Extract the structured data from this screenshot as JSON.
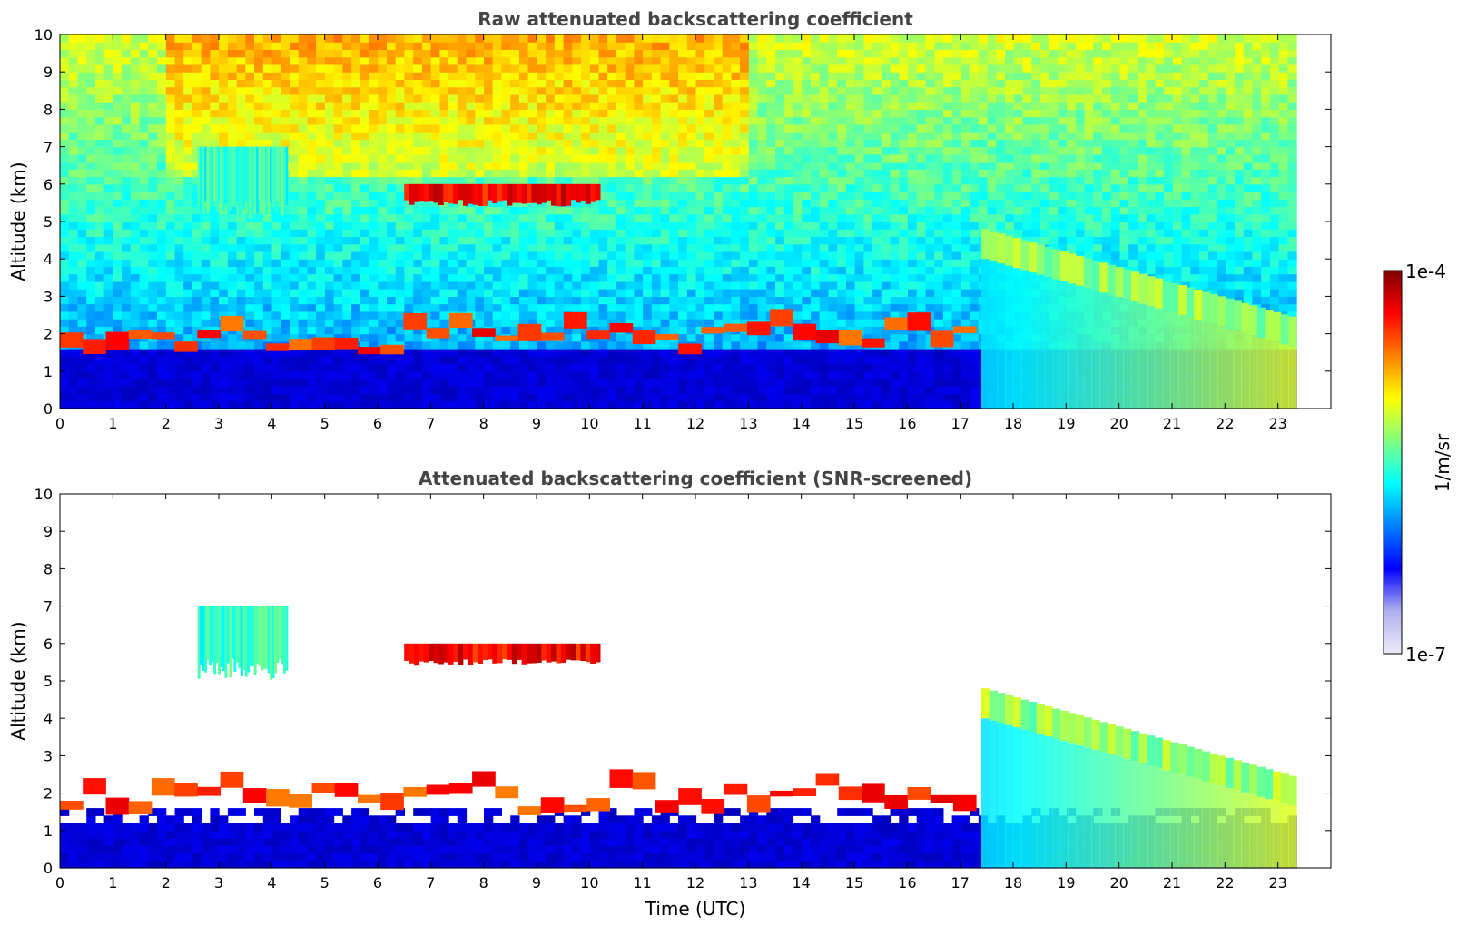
{
  "chart_data": [
    {
      "type": "heatmap",
      "title": "Raw attenuated backscattering coefficient",
      "xlabel": "",
      "ylabel": "Altitude (km)",
      "xlim": [
        0,
        24
      ],
      "ylim": [
        0,
        10
      ],
      "x_ticks": [
        0,
        1,
        2,
        3,
        4,
        5,
        6,
        7,
        8,
        9,
        10,
        11,
        12,
        13,
        14,
        15,
        16,
        17,
        18,
        19,
        20,
        21,
        22,
        23
      ],
      "y_ticks": [
        0,
        1,
        2,
        3,
        4,
        5,
        6,
        7,
        8,
        9,
        10
      ],
      "data_time_range": [
        0,
        23.35
      ],
      "screened": false,
      "features": [
        {
          "name": "boundary layer",
          "t_start": 0,
          "t_end": 23.35,
          "alt_top": 1.5,
          "level": 0.08
        },
        {
          "name": "cirrus",
          "t_start": 2.6,
          "t_end": 4.3,
          "alt_bottom": 5.0,
          "alt_top": 7.0,
          "level": 0.5
        },
        {
          "name": "cloud layer",
          "t_start": 6.5,
          "t_end": 10.2,
          "alt_bottom": 5.4,
          "alt_top": 6.0,
          "level": 0.95
        },
        {
          "name": "low cloud",
          "t_start": 0,
          "t_end": 17.3,
          "alt_bottom": 1.2,
          "alt_top": 2.8,
          "level": 0.9
        },
        {
          "name": "descending cloud",
          "t_start": 17.4,
          "t_end": 23.35,
          "alt_bottom": 0,
          "alt_top": 4.8,
          "level": 0.6
        }
      ]
    },
    {
      "type": "heatmap",
      "title": "Attenuated backscattering coefficient (SNR-screened)",
      "xlabel": "Time (UTC)",
      "ylabel": "Altitude (km)",
      "xlim": [
        0,
        24
      ],
      "ylim": [
        0,
        10
      ],
      "x_ticks": [
        0,
        1,
        2,
        3,
        4,
        5,
        6,
        7,
        8,
        9,
        10,
        11,
        12,
        13,
        14,
        15,
        16,
        17,
        18,
        19,
        20,
        21,
        22,
        23
      ],
      "y_ticks": [
        0,
        1,
        2,
        3,
        4,
        5,
        6,
        7,
        8,
        9,
        10
      ],
      "data_time_range": [
        0,
        23.35
      ],
      "screened": true,
      "features": [
        {
          "name": "boundary layer",
          "t_start": 0,
          "t_end": 23.35,
          "alt_top": 1.5,
          "level": 0.08
        },
        {
          "name": "cirrus",
          "t_start": 2.6,
          "t_end": 4.3,
          "alt_bottom": 5.0,
          "alt_top": 7.0,
          "level": 0.5
        },
        {
          "name": "cloud layer",
          "t_start": 6.5,
          "t_end": 10.2,
          "alt_bottom": 5.4,
          "alt_top": 6.0,
          "level": 0.95
        },
        {
          "name": "low cloud",
          "t_start": 0,
          "t_end": 17.3,
          "alt_bottom": 1.2,
          "alt_top": 2.8,
          "level": 0.9
        },
        {
          "name": "descending cloud",
          "t_start": 17.4,
          "t_end": 23.35,
          "alt_bottom": 0,
          "alt_top": 4.8,
          "level": 0.6
        }
      ]
    }
  ],
  "colorbar": {
    "label": "1/m/sr",
    "max_label": "1e-4",
    "min_label": "1e-7",
    "scale": "log",
    "colormap": "jet",
    "colors": [
      "#ececf8",
      "#b0b0ee",
      "#0000ff",
      "#0080ff",
      "#00ffff",
      "#80ff80",
      "#ffff00",
      "#ff8000",
      "#ff0000",
      "#800000"
    ]
  }
}
